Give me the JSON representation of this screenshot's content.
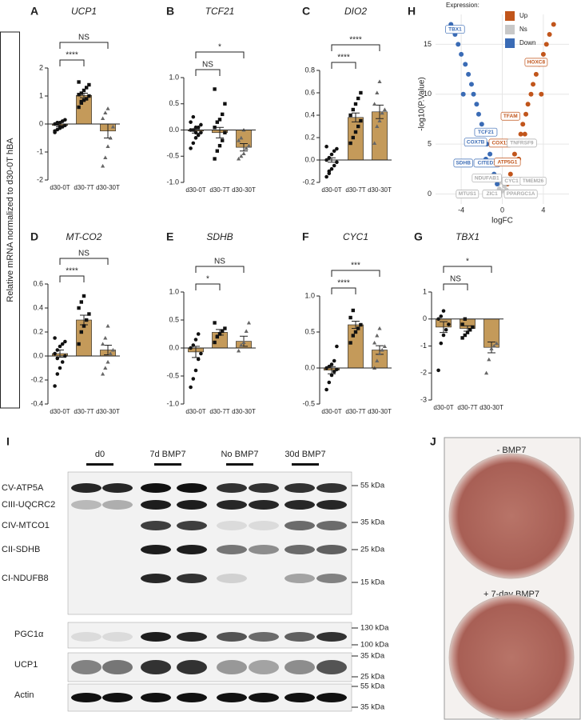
{
  "shared_ylabel": "Relative mRNA normalized to d30-0T hBA",
  "chart_data": [
    {
      "type": "bar",
      "label": "A",
      "title": "UCP1",
      "categories": [
        "d30-0T",
        "d30-7T",
        "d30-30T"
      ],
      "values": [
        -0.05,
        1.02,
        -0.25
      ],
      "errors": [
        0.05,
        0.08,
        0.25
      ],
      "color": "#c49a5a",
      "points": [
        [
          -0.3,
          -0.2,
          -0.15,
          -0.1,
          -0.05,
          0,
          0,
          0.05,
          0.1,
          0.15,
          -0.25,
          0.05,
          -0.1,
          0.1
        ],
        [
          0.6,
          0.75,
          0.85,
          0.9,
          1.0,
          1.05,
          1.1,
          1.2,
          1.3,
          1.4,
          1.5,
          0.8
        ],
        [
          -1.5,
          -1.2,
          -0.8,
          -0.5,
          -0.1,
          0.2,
          0.4,
          0.55
        ]
      ],
      "significance": [
        "****",
        "NS"
      ],
      "ylim": [
        -2,
        2
      ],
      "yticks": [
        -2,
        -1,
        0,
        1,
        2
      ]
    },
    {
      "type": "bar",
      "label": "B",
      "title": "TCF21",
      "categories": [
        "d30-0T",
        "d30-7T",
        "d30-30T"
      ],
      "values": [
        -0.02,
        -0.05,
        -0.33
      ],
      "errors": [
        0.04,
        0.1,
        0.07
      ],
      "color": "#c49a5a",
      "points": [
        [
          -0.35,
          -0.25,
          -0.15,
          -0.1,
          -0.05,
          0,
          0,
          0.05,
          0.05,
          0.1,
          0.15,
          0.25,
          -0.05
        ],
        [
          -0.55,
          -0.4,
          -0.3,
          -0.2,
          -0.05,
          0.05,
          0.15,
          0.2,
          0.3,
          0.5,
          0.78
        ],
        [
          -0.55,
          -0.5,
          -0.45,
          -0.35,
          -0.3,
          -0.2,
          -0.15,
          0.0
        ]
      ],
      "significance": [
        "NS",
        "*"
      ],
      "ylim": [
        -1,
        1
      ],
      "yticks": [
        {
          "value": -1,
          "label": "-1.0"
        },
        -0.5,
        {
          "value": 0,
          "label": "0.0"
        },
        0.5,
        {
          "value": 1,
          "label": "1.0"
        }
      ]
    },
    {
      "type": "bar",
      "label": "C",
      "title": "DIO2",
      "categories": [
        "d30-0T",
        "d30-7T",
        "d30-30T"
      ],
      "values": [
        0.0,
        0.38,
        0.43
      ],
      "errors": [
        0.02,
        0.04,
        0.06
      ],
      "color": "#c49a5a",
      "points": [
        [
          -0.15,
          -0.1,
          -0.08,
          -0.05,
          -0.02,
          0,
          0.02,
          0.05,
          0.08,
          0.1,
          0.12,
          -0.12
        ],
        [
          0.15,
          0.2,
          0.25,
          0.3,
          0.35,
          0.4,
          0.45,
          0.5,
          0.55,
          0.6
        ],
        [
          0.15,
          0.3,
          0.35,
          0.42,
          0.45,
          0.5,
          0.6,
          0.7
        ]
      ],
      "significance": [
        "****",
        "****"
      ],
      "ylim": [
        -0.2,
        0.8
      ],
      "yticks": [
        -0.2,
        {
          "value": 0,
          "label": "0.0"
        },
        0.2,
        0.4,
        0.6,
        0.8
      ]
    },
    {
      "type": "bar",
      "label": "D",
      "title": "MT-CO2",
      "categories": [
        "d30-0T",
        "d30-7T",
        "d30-30T"
      ],
      "values": [
        0.02,
        0.3,
        0.05
      ],
      "errors": [
        0.03,
        0.04,
        0.04
      ],
      "color": "#c49a5a",
      "points": [
        [
          -0.25,
          -0.15,
          -0.1,
          -0.05,
          0,
          0.02,
          0.05,
          0.08,
          0.1,
          0.12,
          0.15,
          -0.02
        ],
        [
          0.1,
          0.2,
          0.25,
          0.3,
          0.35,
          0.4,
          0.45,
          0.5
        ],
        [
          -0.15,
          -0.1,
          -0.05,
          0.02,
          0.05,
          0.1,
          0.15,
          0.25
        ]
      ],
      "significance": [
        "****",
        "NS"
      ],
      "ylim": [
        -0.4,
        0.6
      ],
      "yticks": [
        -0.4,
        -0.2,
        {
          "value": 0,
          "label": "0.0"
        },
        0.2,
        0.4,
        0.6
      ]
    },
    {
      "type": "bar",
      "label": "E",
      "title": "SDHB",
      "categories": [
        "d30-0T",
        "d30-7T",
        "d30-30T"
      ],
      "values": [
        -0.07,
        0.28,
        0.12
      ],
      "errors": [
        0.1,
        0.05,
        0.09
      ],
      "color": "#c49a5a",
      "points": [
        [
          -0.7,
          -0.55,
          -0.4,
          -0.2,
          -0.1,
          0.0,
          0.05,
          0.15,
          0.25
        ],
        [
          0.1,
          0.2,
          0.25,
          0.3,
          0.35,
          0.45
        ],
        [
          -0.05,
          0.05,
          0.1,
          0.3,
          0.45
        ]
      ],
      "significance": [
        "*",
        "NS"
      ],
      "ylim": [
        -1,
        1
      ],
      "yticks": [
        {
          "value": -1,
          "label": "-1.0"
        },
        -0.5,
        {
          "value": 0,
          "label": "0.0"
        },
        0.5,
        {
          "value": 1,
          "label": "1.0"
        }
      ]
    },
    {
      "type": "bar",
      "label": "F",
      "title": "CYC1",
      "categories": [
        "d30-0T",
        "d30-7T",
        "d30-30T"
      ],
      "values": [
        -0.03,
        0.6,
        0.25
      ],
      "errors": [
        0.05,
        0.05,
        0.06
      ],
      "color": "#c49a5a",
      "points": [
        [
          -0.3,
          -0.2,
          -0.1,
          -0.05,
          -0.02,
          0,
          0.02,
          0.05,
          0.1,
          0.3
        ],
        [
          0.35,
          0.45,
          0.5,
          0.55,
          0.6,
          0.7,
          0.8
        ],
        [
          0.0,
          0.1,
          0.2,
          0.25,
          0.3,
          0.35,
          0.45,
          0.55
        ]
      ],
      "significance": [
        "****",
        "***"
      ],
      "ylim": [
        -0.5,
        1
      ],
      "yticks": [
        -0.5,
        {
          "value": 0,
          "label": "0.0"
        },
        0.5,
        {
          "value": 1,
          "label": "1.0"
        }
      ]
    },
    {
      "type": "bar",
      "label": "G",
      "title": "TBX1",
      "categories": [
        "d30-0T",
        "d30-7T",
        "d30-30T"
      ],
      "values": [
        -0.3,
        -0.35,
        -1.05
      ],
      "errors": [
        0.2,
        0.1,
        0.2
      ],
      "color": "#c49a5a",
      "points": [
        [
          -1.9,
          -0.9,
          -0.6,
          -0.4,
          -0.2,
          0,
          0.1,
          0.3
        ],
        [
          -0.7,
          -0.6,
          -0.5,
          -0.4,
          -0.3,
          -0.2,
          0.0
        ],
        [
          -2.0,
          -1.5,
          -1.1,
          -1.0,
          -0.9
        ]
      ],
      "significance": [
        "NS",
        "*"
      ],
      "ylim": [
        -3,
        1
      ],
      "yticks": [
        -3,
        -2,
        -1,
        0,
        1
      ]
    },
    {
      "type": "scatter",
      "label": "H",
      "legend_title": "Expression:",
      "xlabel": "logFC",
      "ylabel": "-log10(P.Value)",
      "xlim": [
        -6.5,
        6.5
      ],
      "xticks": [
        -4,
        0,
        4
      ],
      "ylim": [
        -1,
        18
      ],
      "yticks": [
        0,
        5,
        10,
        15
      ],
      "grid": true,
      "series": [
        {
          "name": "Up",
          "color": "#c1551b",
          "x": [
            0.5,
            0.8,
            1.0,
            1.2,
            1.5,
            1.8,
            2.0,
            2.3,
            2.5,
            2.8,
            3.0,
            3.3,
            3.6,
            4.0,
            4.3,
            4.6,
            5.0,
            3.8,
            2.2,
            1.6
          ],
          "y": [
            1,
            2,
            3,
            4,
            5,
            6,
            7,
            8,
            9,
            10,
            11,
            12,
            13,
            14,
            15,
            16,
            17,
            10,
            6,
            3.5
          ]
        },
        {
          "name": "Ns",
          "color": "#c8c8c8",
          "x": [
            -0.6,
            -0.3,
            0,
            0.2,
            0.4,
            -0.1,
            0.3,
            -0.4
          ],
          "y": [
            0.2,
            0.5,
            0.3,
            0.8,
            0.4,
            1.2,
            1.5,
            1.0
          ]
        },
        {
          "name": "Down",
          "color": "#3a6bb5",
          "x": [
            -0.5,
            -0.8,
            -1.0,
            -1.2,
            -1.5,
            -1.8,
            -2.0,
            -2.3,
            -2.5,
            -2.8,
            -3.0,
            -3.3,
            -3.6,
            -4.0,
            -4.3,
            -4.6,
            -5.0,
            -3.8,
            -2.2,
            -1.6
          ],
          "y": [
            1,
            2,
            3,
            4,
            5,
            6,
            7,
            8,
            9,
            10,
            11,
            12,
            13,
            14,
            15,
            16,
            17,
            10,
            6,
            3.5
          ]
        }
      ],
      "annotations": [
        {
          "text": "TBX1",
          "x": -4.6,
          "y": 16.5,
          "color": "#3a6bb5"
        },
        {
          "text": "HOXC8",
          "x": 3.3,
          "y": 13.2,
          "color": "#c1551b"
        },
        {
          "text": "TFAM",
          "x": 0.8,
          "y": 7.8,
          "color": "#c1551b"
        },
        {
          "text": "TCF21",
          "x": -1.6,
          "y": 6.2,
          "color": "#3a6bb5"
        },
        {
          "text": "COX7B",
          "x": -2.6,
          "y": 5.2,
          "color": "#3a6bb5"
        },
        {
          "text": "COX11",
          "x": -0.2,
          "y": 5.1,
          "color": "#c1551b"
        },
        {
          "text": "TNFRSF9",
          "x": 1.9,
          "y": 5.1,
          "color": "#aaaaaa"
        },
        {
          "text": "SDHB",
          "x": -3.8,
          "y": 3.1,
          "color": "#3a6bb5"
        },
        {
          "text": "CITED1",
          "x": -1.5,
          "y": 3.1,
          "color": "#3a6bb5"
        },
        {
          "text": "ATP5G1",
          "x": 0.5,
          "y": 3.2,
          "color": "#c1551b"
        },
        {
          "text": "NDUFAB1",
          "x": -1.5,
          "y": 1.6,
          "color": "#aaaaaa"
        },
        {
          "text": "CYC1",
          "x": 0.9,
          "y": 1.3,
          "color": "#aaaaaa"
        },
        {
          "text": "TMEM26",
          "x": 3.0,
          "y": 1.3,
          "color": "#aaaaaa"
        },
        {
          "text": "MTUS1",
          "x": -3.4,
          "y": 0.0,
          "color": "#aaaaaa"
        },
        {
          "text": "ZIC1",
          "x": -1.0,
          "y": 0.0,
          "color": "#aaaaaa"
        },
        {
          "text": "PPARGC1A",
          "x": 1.8,
          "y": 0.0,
          "color": "#aaaaaa"
        }
      ]
    }
  ],
  "blot": {
    "label": "I",
    "groups": [
      "d0",
      "7d BMP7",
      "No BMP7",
      "30d BMP7"
    ],
    "rows": [
      "CV-ATP5A",
      "CIII-UQCRC2",
      "CIV-MTCO1",
      "CII-SDHB",
      "CI-NDUFB8",
      "PGC1α",
      "UCP1",
      "Actin"
    ],
    "markers": [
      "55 kDa",
      "35 kDa",
      "25 kDa",
      "15 kDa",
      "130 kDa",
      "100 kDa",
      "35 kDa",
      "25 kDa",
      "55 kDa",
      "35 kDa"
    ]
  },
  "photos": {
    "label": "J",
    "captions": [
      "- BMP7",
      "+ 7-day BMP7"
    ]
  }
}
